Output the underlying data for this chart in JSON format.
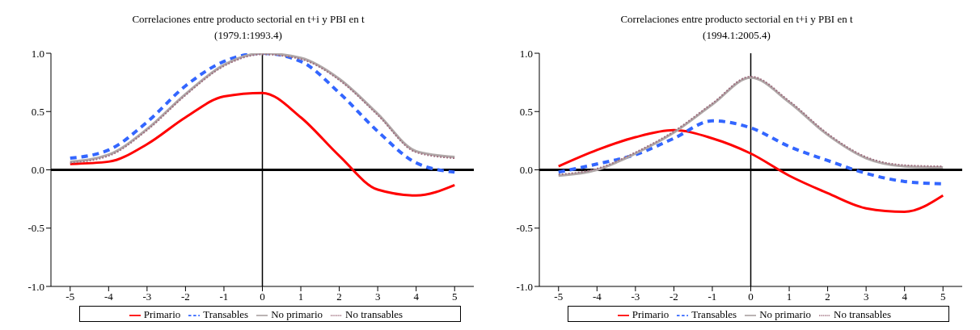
{
  "chart_data": [
    {
      "type": "line",
      "title": "Correlaciones entre producto sectorial en t+i y PBI en t",
      "subtitle": "(1979.1:1993.4)",
      "x": [
        -5,
        -4,
        -3,
        -2,
        -1,
        0,
        1,
        2,
        3,
        4,
        5
      ],
      "xlim": [
        -5.5,
        5.5
      ],
      "xticks": [
        -5,
        -4,
        -3,
        -2,
        -1,
        0,
        1,
        2,
        3,
        4,
        5
      ],
      "ylim": [
        -1,
        1
      ],
      "yticks": [
        {
          "value": -1,
          "label": "-1.0"
        },
        {
          "value": -0.5,
          "label": "-0.5"
        },
        {
          "value": 0,
          "label": "0.0"
        },
        {
          "value": 0.5,
          "label": "0.5"
        },
        {
          "value": 1,
          "label": "1.0"
        }
      ],
      "grid": false,
      "legend": "bottom",
      "marker": "none",
      "ref_lines": [
        {
          "axis": "x",
          "value": 0,
          "color": "#000000"
        }
      ],
      "series": [
        {
          "name": "Primario",
          "color": "#ff0000",
          "line_style": "solid",
          "values": [
            0.05,
            0.07,
            0.22,
            0.45,
            0.63,
            0.66,
            0.45,
            0.12,
            -0.17,
            -0.22,
            -0.13
          ]
        },
        {
          "name": "Transables",
          "color": "#3366ff",
          "line_style": "dashed",
          "values": [
            0.1,
            0.17,
            0.41,
            0.72,
            0.93,
            1.0,
            0.93,
            0.66,
            0.33,
            0.06,
            -0.02
          ]
        },
        {
          "name": "No primario",
          "color": "#b0a8a8",
          "line_style": "solid",
          "values": [
            0.07,
            0.13,
            0.35,
            0.65,
            0.9,
            1.0,
            0.96,
            0.78,
            0.48,
            0.16,
            0.11
          ]
        },
        {
          "name": "No transables",
          "color": "#a07080",
          "line_style": "dotted",
          "values": [
            0.06,
            0.12,
            0.34,
            0.64,
            0.89,
            0.99,
            0.95,
            0.77,
            0.47,
            0.15,
            0.1
          ]
        }
      ]
    },
    {
      "type": "line",
      "title": "Correlaciones entre producto sectorial en t+i y PBI en t",
      "subtitle": "(1994.1:2005.4)",
      "x": [
        -5,
        -4,
        -3,
        -2,
        -1,
        0,
        1,
        2,
        3,
        4,
        5
      ],
      "xlim": [
        -5.5,
        5.5
      ],
      "xticks": [
        -5,
        -4,
        -3,
        -2,
        -1,
        0,
        1,
        2,
        3,
        4,
        5
      ],
      "ylim": [
        -1,
        1
      ],
      "yticks": [
        {
          "value": -1,
          "label": "-1.0"
        },
        {
          "value": -0.5,
          "label": "-0.5"
        },
        {
          "value": 0,
          "label": "0.0"
        },
        {
          "value": 0.5,
          "label": "0.5"
        },
        {
          "value": 1,
          "label": "1.0"
        }
      ],
      "grid": false,
      "legend": "bottom",
      "marker": "none",
      "ref_lines": [
        {
          "axis": "x",
          "value": 0,
          "color": "#000000"
        }
      ],
      "series": [
        {
          "name": "Primario",
          "color": "#ff0000",
          "line_style": "solid",
          "values": [
            0.03,
            0.17,
            0.28,
            0.34,
            0.27,
            0.14,
            -0.05,
            -0.2,
            -0.33,
            -0.36,
            -0.22
          ]
        },
        {
          "name": "Transables",
          "color": "#3366ff",
          "line_style": "dashed",
          "values": [
            -0.02,
            0.05,
            0.13,
            0.27,
            0.42,
            0.36,
            0.2,
            0.08,
            -0.03,
            -0.1,
            -0.12
          ]
        },
        {
          "name": "No primario",
          "color": "#b0a8a8",
          "line_style": "solid",
          "values": [
            -0.05,
            0.0,
            0.14,
            0.32,
            0.56,
            0.79,
            0.58,
            0.3,
            0.1,
            0.03,
            0.02
          ]
        },
        {
          "name": "No transables",
          "color": "#a07080",
          "line_style": "dotted",
          "values": [
            -0.04,
            0.01,
            0.15,
            0.33,
            0.57,
            0.8,
            0.59,
            0.31,
            0.11,
            0.04,
            0.03
          ]
        }
      ]
    }
  ]
}
